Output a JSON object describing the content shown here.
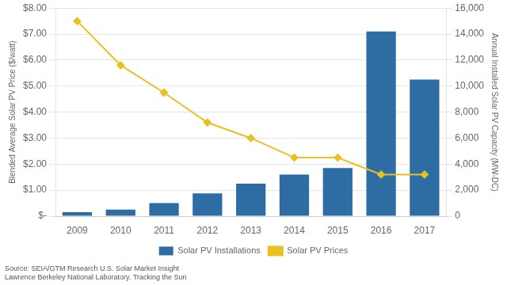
{
  "chart_data": {
    "type": "bar",
    "categories": [
      "2009",
      "2010",
      "2011",
      "2012",
      "2013",
      "2014",
      "2015",
      "2016",
      "2017"
    ],
    "series": [
      {
        "name": "Solar PV Installations",
        "type": "bar",
        "color": "#2E6DA4",
        "axis": "y2",
        "values": [
          300,
          500,
          1000,
          1750,
          2500,
          3200,
          3700,
          14200,
          10500
        ]
      },
      {
        "name": "Solar PV Prices",
        "type": "line",
        "color": "#E8C020",
        "marker": "diamond",
        "line_style": "solid",
        "values": [
          7.5,
          5.8,
          4.75,
          3.6,
          3.0,
          2.25,
          2.25,
          1.6,
          1.6
        ]
      }
    ],
    "ylabel": "Blended Average Solar PV Price ($/watt)",
    "y2label": "Annual Installed Solar PV Capacity (MW-DC)",
    "ylim": [
      0,
      8
    ],
    "yticks": [
      {
        "value": 0,
        "label": "$-"
      },
      {
        "value": 1,
        "label": "$1.00"
      },
      {
        "value": 2,
        "label": "$2.00"
      },
      {
        "value": 3,
        "label": "$3.00"
      },
      {
        "value": 4,
        "label": "$4.00"
      },
      {
        "value": 5,
        "label": "$5.00"
      },
      {
        "value": 6,
        "label": "$6.00"
      },
      {
        "value": 7,
        "label": "$7.00"
      },
      {
        "value": 8,
        "label": "$8.00"
      }
    ],
    "y2lim": [
      0,
      16000
    ],
    "y2ticks": [
      0,
      {
        "value": 2000,
        "label": "2,000"
      },
      {
        "value": 4000,
        "label": "4,000"
      },
      {
        "value": 6000,
        "label": "6,000"
      },
      {
        "value": 8000,
        "label": "8,000"
      },
      {
        "value": 10000,
        "label": "10,000"
      },
      {
        "value": 12000,
        "label": "12,000"
      },
      {
        "value": 14000,
        "label": "14,000"
      },
      {
        "value": 16000,
        "label": "16,000"
      }
    ],
    "grid": true,
    "legend": "bottom",
    "annotations": [
      "Source: SEIA/GTM Research U.S. Solar Market Insight\nLawrence Berkeley National Laboratory. Tracking the Sun"
    ]
  }
}
